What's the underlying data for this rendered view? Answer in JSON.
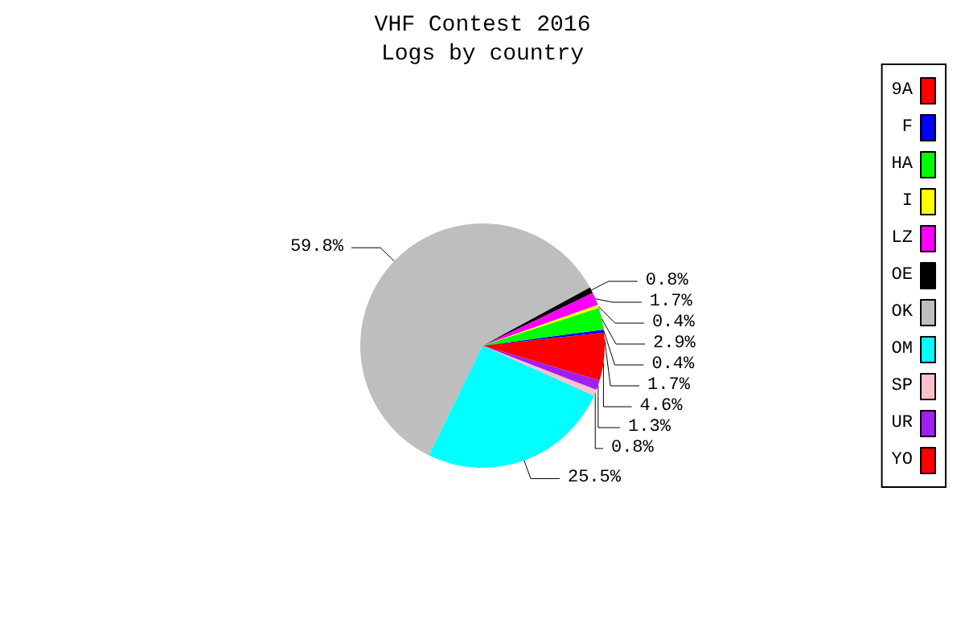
{
  "chart_data": {
    "type": "pie",
    "title": "VHF Contest 2016",
    "subtitle": "Logs by country",
    "categories": [
      "9A",
      "F",
      "HA",
      "I",
      "LZ",
      "OE",
      "OK",
      "OM",
      "SP",
      "UR",
      "YO"
    ],
    "values": [
      1.7,
      0.4,
      2.9,
      0.4,
      1.7,
      0.8,
      59.8,
      25.5,
      0.8,
      1.3,
      4.6
    ],
    "value_labels": [
      "1.7%",
      "0.4%",
      "2.9%",
      "0.4%",
      "1.7%",
      "0.8%",
      "59.8%",
      "25.5%",
      "0.8%",
      "1.3%",
      "4.6%"
    ],
    "colors": [
      "#ff0000",
      "#0000ff",
      "#00ff00",
      "#ffff00",
      "#ff00ff",
      "#000000",
      "#bebebe",
      "#00ffff",
      "#ffc0cb",
      "#a020f0",
      "#ff0000"
    ],
    "legend": "right"
  }
}
